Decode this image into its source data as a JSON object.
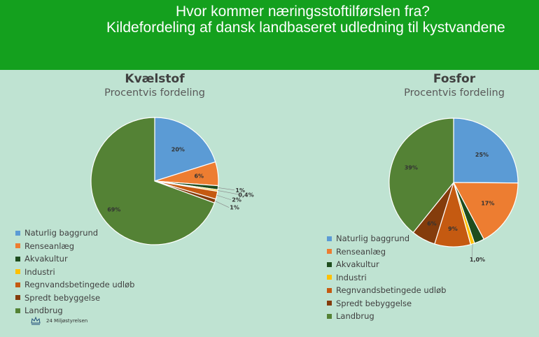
{
  "banner": {
    "line1": "Hvor kommer næringsstoftilførslen fra?",
    "line2": "Kildefordeling af dansk landbaseret udledning til kystvandene"
  },
  "colors": {
    "banner": "#14a01e",
    "background": "#bfe3d2"
  },
  "chart_data": [
    {
      "type": "pie",
      "title": "Kvælstof",
      "subtitle": "Procentvis fordeling",
      "categories": [
        "Naturlig baggrund",
        "Renseanlæg",
        "Akvakultur",
        "Industri",
        "Regnvandsbetingede udløb",
        "Spredt bebyggelse",
        "Landbrug"
      ],
      "values": [
        20,
        6,
        1,
        0.4,
        2,
        1,
        69
      ],
      "labels": [
        "20%",
        "6%",
        "1%",
        "0,4%",
        "2%",
        "1%",
        "69%"
      ],
      "colors": [
        "#5b9bd5",
        "#ed7d31",
        "#1e4d1e",
        "#ffc000",
        "#c55a11",
        "#843c0c",
        "#548235"
      ],
      "legend_position": "bottom-left"
    },
    {
      "type": "pie",
      "title": "Fosfor",
      "subtitle": "Procentvis fordeling",
      "categories": [
        "Naturlig baggrund",
        "Renseanlæg",
        "Akvakultur",
        "Industri",
        "Regnvandsbetingede udløb",
        "Spredt bebyggelse",
        "Landbrug"
      ],
      "values": [
        25,
        17,
        2.5,
        1,
        9,
        6,
        39
      ],
      "labels": [
        "25%",
        "17%",
        "",
        "1,0%",
        "9%",
        "6%",
        "39%"
      ],
      "colors": [
        "#5b9bd5",
        "#ed7d31",
        "#1e4d1e",
        "#ffc000",
        "#c55a11",
        "#843c0c",
        "#548235"
      ],
      "legend_position": "bottom-left"
    }
  ],
  "footer": {
    "text": "24 Miljøstyrelsen",
    "logo_icon": "crown-icon"
  }
}
